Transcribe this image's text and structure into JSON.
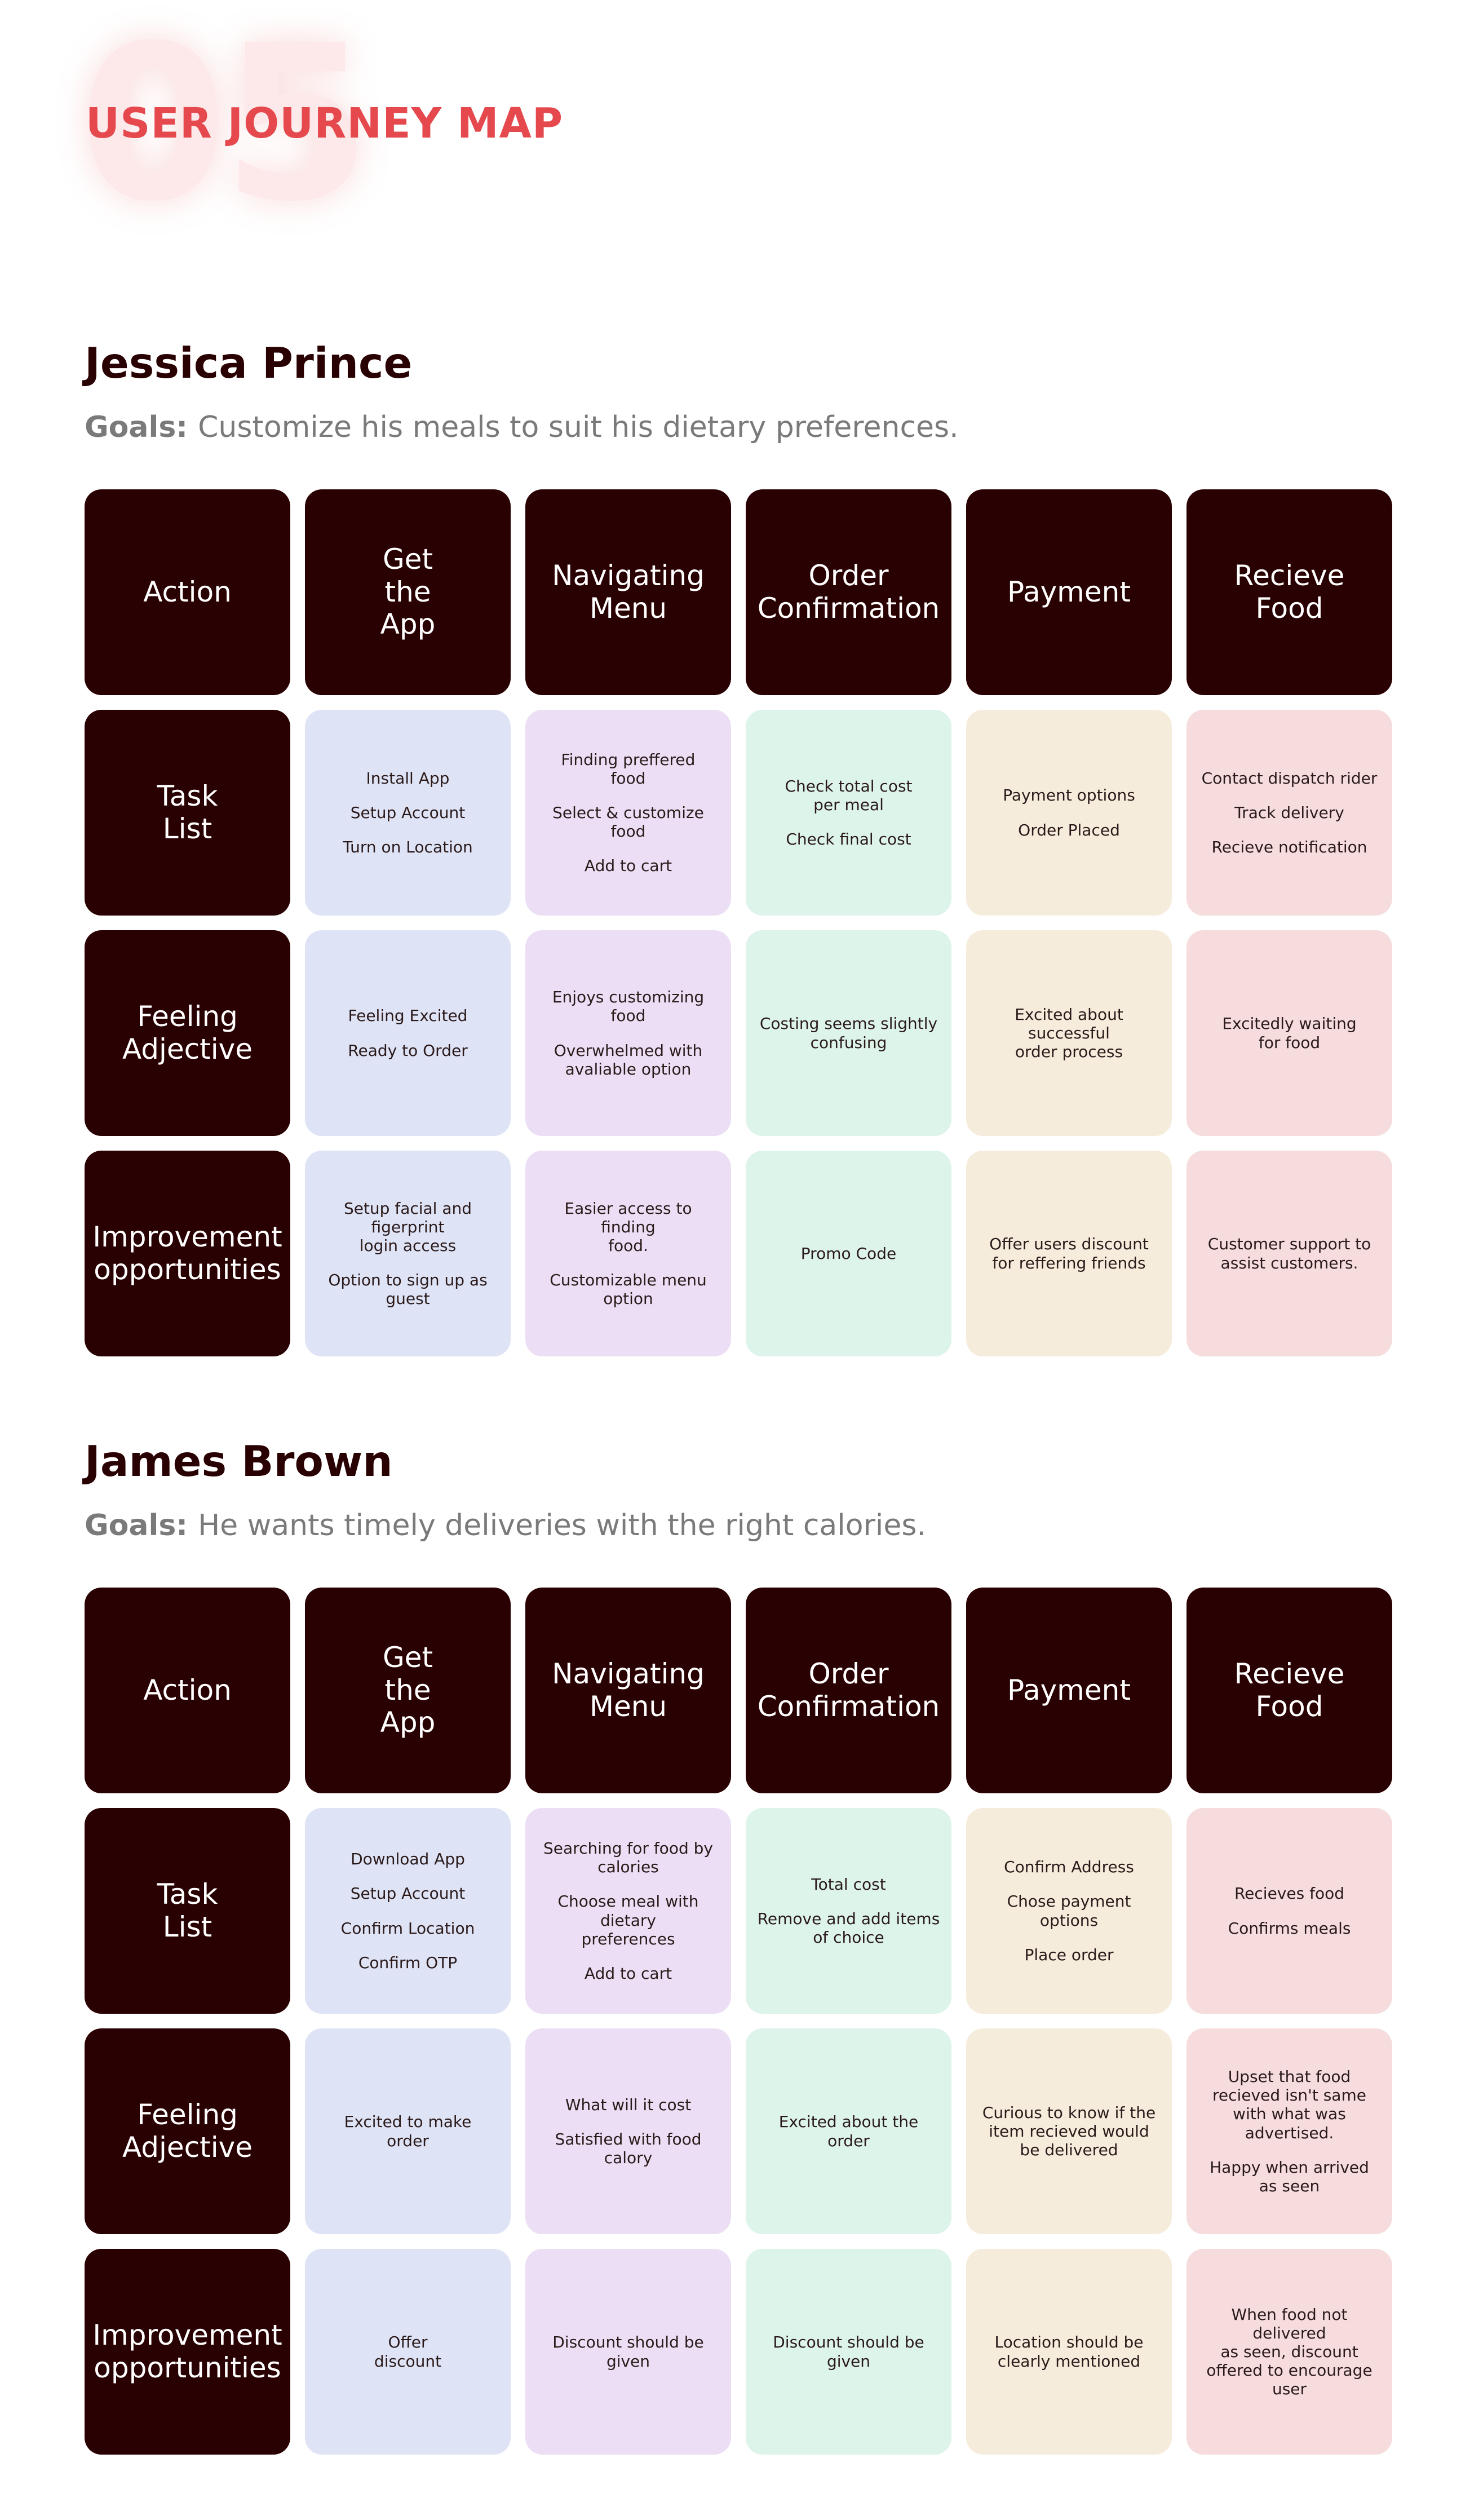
{
  "header": {
    "number": "05",
    "title": "USER JOURNEY MAP"
  },
  "colors": {
    "dark": "#2a0102",
    "accent": "#e5484d",
    "stage_colors": [
      "#dfe3f6",
      "#ecdff5",
      "#ddf4ea",
      "#f6ecdc",
      "#f6dcdc"
    ]
  },
  "personas": [
    {
      "name": "Jessica Prince",
      "goals_label": "Goals:",
      "goals_text": "Customize  his meals to suit his dietary preferences.",
      "rows": [
        {
          "label": "Action",
          "cells": [
            [
              "Get\nthe\nApp"
            ],
            [
              "Navigating\nMenu"
            ],
            [
              "Order\nConfirmation"
            ],
            [
              "Payment"
            ],
            [
              "Recieve\nFood"
            ]
          ]
        },
        {
          "label": "Task\nList",
          "cells": [
            [
              "Install App",
              "Setup Account",
              "Turn on Location"
            ],
            [
              "Finding preffered\nfood",
              "Select & customize\nfood",
              "Add to cart"
            ],
            [
              "Check total cost\nper meal",
              "Check final cost"
            ],
            [
              "Payment options",
              "Order Placed"
            ],
            [
              "Contact dispatch rider",
              "Track delivery",
              "Recieve notification"
            ]
          ]
        },
        {
          "label": "Feeling\nAdjective",
          "cells": [
            [
              "Feeling Excited",
              "Ready to Order"
            ],
            [
              "Enjoys customizing\nfood",
              "Overwhelmed with\navaliable option"
            ],
            [
              "Costing seems slightly\nconfusing"
            ],
            [
              "Excited about successful\norder process"
            ],
            [
              "Excitedly waiting\nfor food"
            ]
          ]
        },
        {
          "label": "Improvement\nopportunities",
          "cells": [
            [
              "Setup facial and figerprint\nlogin access",
              "Option to sign up as\nguest"
            ],
            [
              "Easier access to finding\nfood.",
              "Customizable menu\noption"
            ],
            [
              "Promo Code"
            ],
            [
              "Offer users discount\nfor reffering friends"
            ],
            [
              "Customer support to\nassist customers."
            ]
          ]
        }
      ]
    },
    {
      "name": "James Brown",
      "goals_label": "Goals:",
      "goals_text": "He wants timely deliveries with the right calories.",
      "rows": [
        {
          "label": "Action",
          "cells": [
            [
              "Get\nthe\nApp"
            ],
            [
              "Navigating\nMenu"
            ],
            [
              "Order\nConfirmation"
            ],
            [
              "Payment"
            ],
            [
              "Recieve\nFood"
            ]
          ]
        },
        {
          "label": "Task\nList",
          "cells": [
            [
              "Download App",
              "Setup Account",
              "Confirm Location",
              "Confirm OTP"
            ],
            [
              "Searching for food by\ncalories",
              "Choose meal with dietary\npreferences",
              "Add to cart"
            ],
            [
              "Total cost",
              "Remove and add items\nof choice"
            ],
            [
              "Confirm Address",
              "Chose payment\noptions",
              "Place order"
            ],
            [
              "Recieves food",
              "Confirms meals"
            ]
          ]
        },
        {
          "label": "Feeling\nAdjective",
          "cells": [
            [
              "Excited to make\norder"
            ],
            [
              "What will it cost",
              "Satisfied with food\ncalory"
            ],
            [
              "Excited about the\norder"
            ],
            [
              "Curious to know if the\nitem recieved would\nbe delivered"
            ],
            [
              "Upset that food\nrecieved isn't same\nwith what was\nadvertised.",
              "Happy when arrived\nas seen"
            ]
          ]
        },
        {
          "label": "Improvement\nopportunities",
          "cells": [
            [
              "Offer\ndiscount"
            ],
            [
              "Discount should be\ngiven"
            ],
            [
              "Discount should be\ngiven"
            ],
            [
              "Location should be\nclearly mentioned"
            ],
            [
              "When food not delivered\nas seen, discount\noffered to encourage user"
            ]
          ]
        }
      ]
    }
  ]
}
